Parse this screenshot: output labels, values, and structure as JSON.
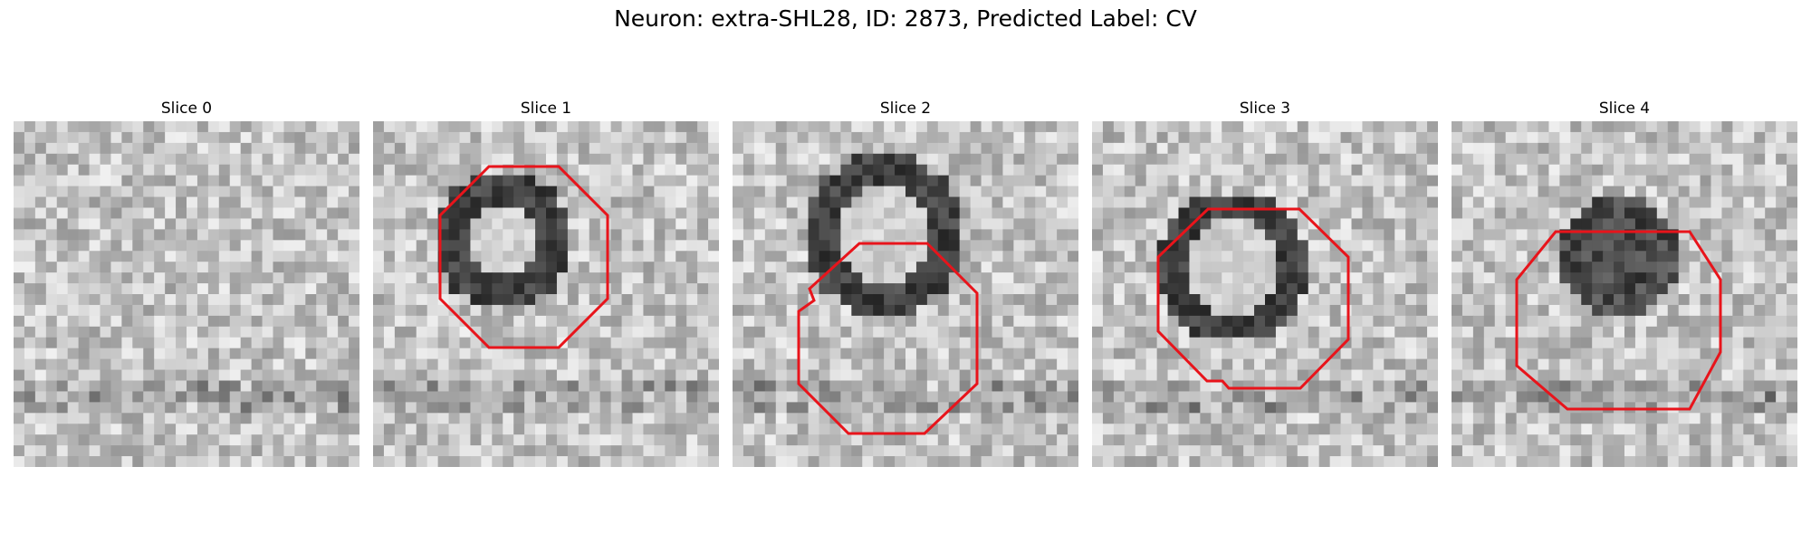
{
  "figure": {
    "title": "Neuron: extra-SHL28, ID: 2873, Predicted Label: CV"
  },
  "slices": [
    {
      "label": "Slice 0",
      "has_outline": false
    },
    {
      "label": "Slice 1",
      "has_outline": true
    },
    {
      "label": "Slice 2",
      "has_outline": true
    },
    {
      "label": "Slice 3",
      "has_outline": true
    },
    {
      "label": "Slice 4",
      "has_outline": true
    }
  ],
  "colors": {
    "outline": "#e8141b",
    "background": "#ffffff"
  }
}
